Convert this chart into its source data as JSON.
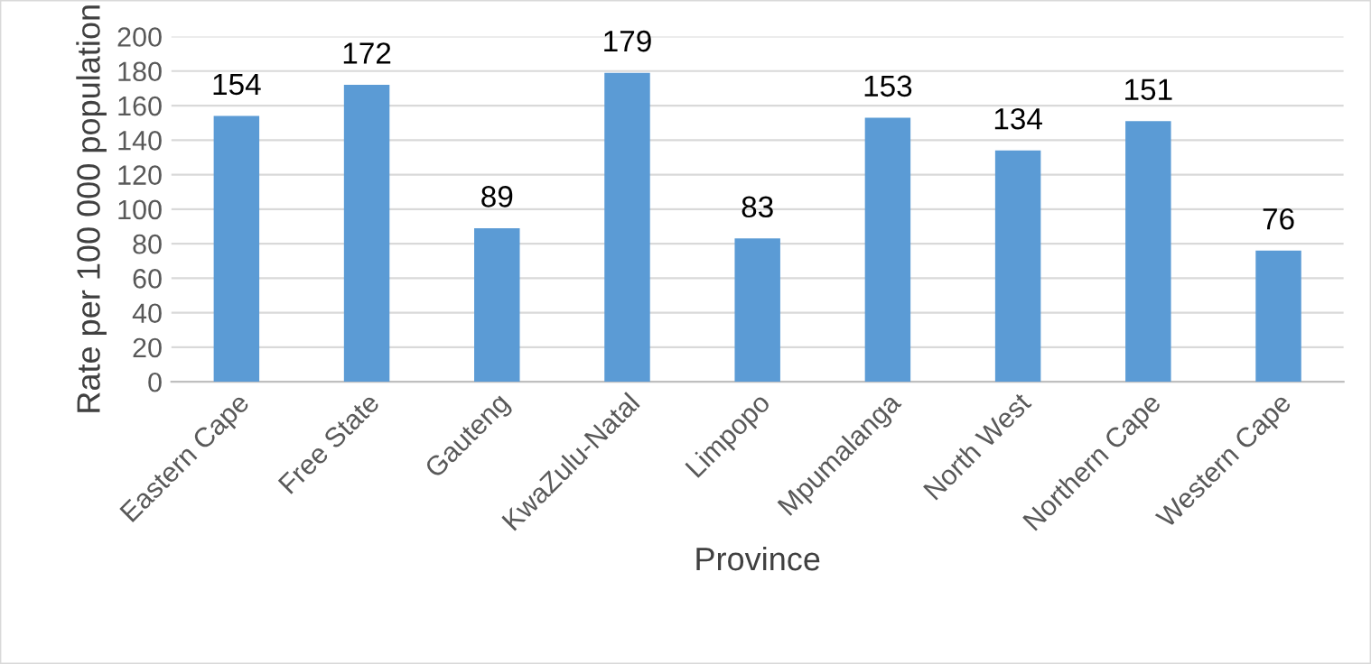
{
  "chart_data": {
    "type": "bar",
    "xlabel": "Province",
    "ylabel": "Rate per 100 000 population",
    "categories": [
      "Eastern Cape",
      "Free State",
      "Gauteng",
      "KwaZulu-Natal",
      "Limpopo",
      "Mpumalanga",
      "North West",
      "Northern Cape",
      "Western Cape"
    ],
    "values": [
      154,
      172,
      89,
      179,
      83,
      153,
      134,
      151,
      76
    ],
    "color": "#5b9bd5",
    "ylim": [
      0,
      200
    ],
    "yticks": [
      0,
      20,
      40,
      60,
      80,
      100,
      120,
      140,
      160,
      180,
      200
    ],
    "grid": "y",
    "data_labels": true
  }
}
